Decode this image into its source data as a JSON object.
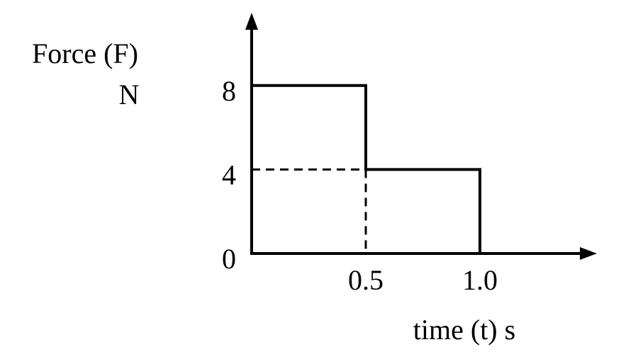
{
  "chart_data": {
    "type": "line",
    "ylabel": "Force (F)",
    "yunit": "N",
    "xlabel": "time (t) s",
    "x": [
      0,
      0.5,
      0.5,
      1.0,
      1.0
    ],
    "values": [
      8,
      8,
      4,
      4,
      0
    ],
    "color": "#000000",
    "xlim": [
      0,
      1.5
    ],
    "ylim": [
      0,
      11.4
    ],
    "xticks": [
      0.5,
      {
        "value": 1.0,
        "label": "1.0"
      }
    ],
    "yticks": [
      0,
      4,
      8
    ],
    "dashed_guides": true
  }
}
